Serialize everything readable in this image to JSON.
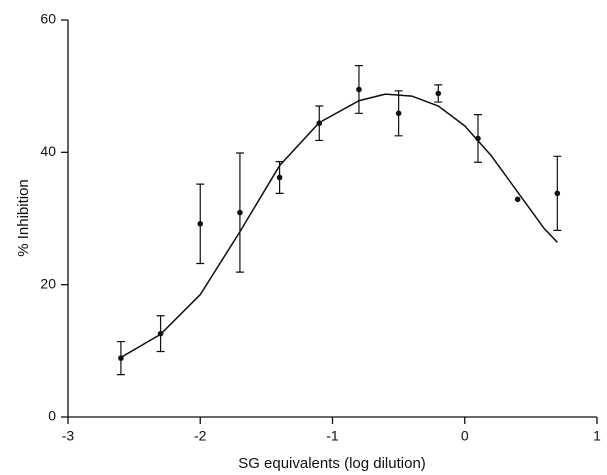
{
  "chart_data": {
    "type": "scatter",
    "x": [
      -2.6,
      -2.3,
      -2.0,
      -1.7,
      -1.4,
      -1.1,
      -0.8,
      -0.5,
      -0.2,
      0.1,
      0.4,
      0.7
    ],
    "values": [
      8.9,
      12.6,
      29.2,
      30.9,
      36.2,
      44.4,
      49.5,
      45.9,
      48.9,
      42.1,
      32.9,
      33.8
    ],
    "errors": [
      2.5,
      2.7,
      6,
      9,
      2.4,
      2.6,
      3.6,
      3.4,
      1.3,
      3.6,
      null,
      5.6
    ],
    "curve": {
      "x": [
        -2.6,
        -2.3,
        -2.0,
        -1.7,
        -1.4,
        -1.1,
        -0.8,
        -0.6,
        -0.4,
        -0.2,
        0,
        0.2,
        0.4,
        0.6,
        0.7
      ],
      "values": [
        9,
        12.5,
        18.5,
        28,
        38,
        44.5,
        47.8,
        48.8,
        48.5,
        47,
        44,
        39.5,
        34,
        28.5,
        26.4
      ]
    },
    "color": "#111111",
    "xlabel": "SG equivalents (log dilution)",
    "ylabel": "% Inhibition",
    "xlim": [
      -3,
      1
    ],
    "xticks": [
      -3,
      -2,
      -1,
      0,
      1
    ],
    "ylim": [
      0,
      60
    ],
    "yticks": [
      0,
      20,
      40,
      60
    ]
  }
}
